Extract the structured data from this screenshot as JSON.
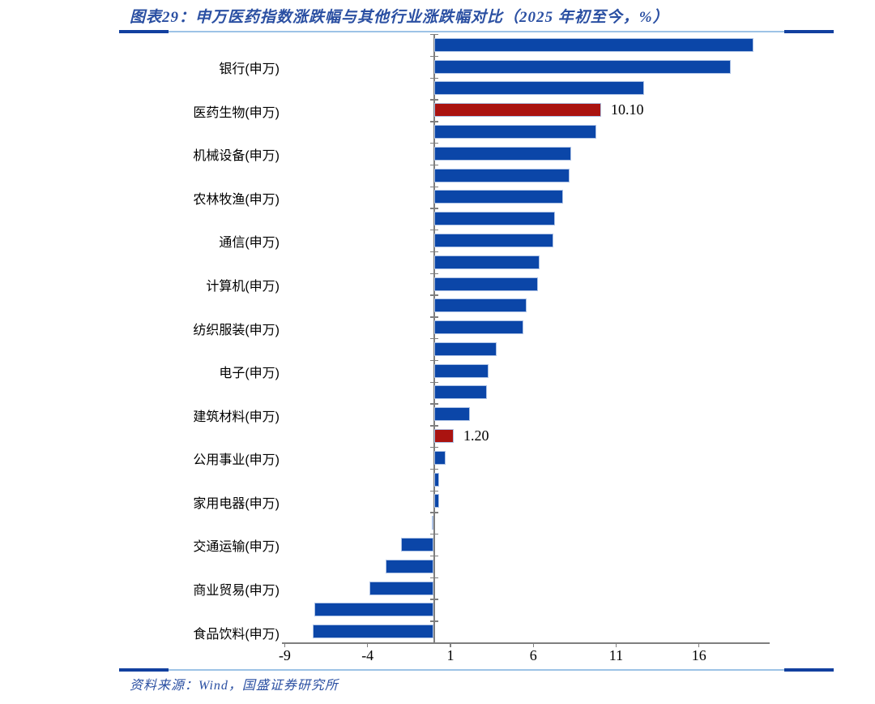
{
  "figure": {
    "title": "图表29：申万医药指数涨跌幅与其他行业涨跌幅对比（2025 年初至今，%）",
    "source": "资料来源：Wind，国盛证券研究所"
  },
  "colors": {
    "bar_blue": "#0B46A8",
    "bar_red": "#AA1310",
    "bar_border": "#AEC3E6",
    "rule_navy": "#12409F",
    "rule_light": "#9DC3E6",
    "text_blue": "#2A4FA2",
    "axis_gray": "#7F7F7F"
  },
  "chart_data": {
    "type": "bar",
    "orientation": "horizontal",
    "title": "申万医药指数涨跌幅与其他行业涨跌幅对比（2025年初至今，%）",
    "xlabel": "",
    "ylabel": "",
    "x_ticks": [
      -9,
      -4,
      1,
      6,
      11,
      16
    ],
    "xlim": [
      -9.4,
      20.6
    ],
    "grid": false,
    "legend": "none",
    "note": "only alternate bars carry visible category labels; highlighted red bars carry data labels",
    "bars": [
      {
        "label": "",
        "value": 19.3,
        "color": "blue",
        "data_label": ""
      },
      {
        "label": "银行(申万)",
        "value": 17.9,
        "color": "blue",
        "data_label": ""
      },
      {
        "label": "",
        "value": 12.7,
        "color": "blue",
        "data_label": ""
      },
      {
        "label": "医药生物(申万)",
        "value": 10.1,
        "color": "red",
        "data_label": "10.10"
      },
      {
        "label": "",
        "value": 9.8,
        "color": "blue",
        "data_label": ""
      },
      {
        "label": "机械设备(申万)",
        "value": 8.3,
        "color": "blue",
        "data_label": ""
      },
      {
        "label": "",
        "value": 8.2,
        "color": "blue",
        "data_label": ""
      },
      {
        "label": "农林牧渔(申万)",
        "value": 7.8,
        "color": "blue",
        "data_label": ""
      },
      {
        "label": "",
        "value": 7.3,
        "color": "blue",
        "data_label": ""
      },
      {
        "label": "通信(申万)",
        "value": 7.2,
        "color": "blue",
        "data_label": ""
      },
      {
        "label": "",
        "value": 6.4,
        "color": "blue",
        "data_label": ""
      },
      {
        "label": "计算机(申万)",
        "value": 6.3,
        "color": "blue",
        "data_label": ""
      },
      {
        "label": "",
        "value": 5.6,
        "color": "blue",
        "data_label": ""
      },
      {
        "label": "纺织服装(申万)",
        "value": 5.4,
        "color": "blue",
        "data_label": ""
      },
      {
        "label": "",
        "value": 3.8,
        "color": "blue",
        "data_label": ""
      },
      {
        "label": "电子(申万)",
        "value": 3.3,
        "color": "blue",
        "data_label": ""
      },
      {
        "label": "",
        "value": 3.2,
        "color": "blue",
        "data_label": ""
      },
      {
        "label": "建筑材料(申万)",
        "value": 2.2,
        "color": "blue",
        "data_label": ""
      },
      {
        "label": "",
        "value": 1.2,
        "color": "red",
        "data_label": "1.20"
      },
      {
        "label": "公用事业(申万)",
        "value": 0.7,
        "color": "blue",
        "data_label": ""
      },
      {
        "label": "",
        "value": 0.3,
        "color": "blue",
        "data_label": ""
      },
      {
        "label": "家用电器(申万)",
        "value": 0.3,
        "color": "blue",
        "data_label": ""
      },
      {
        "label": "",
        "value": -0.1,
        "color": "blue",
        "data_label": ""
      },
      {
        "label": "交通运输(申万)",
        "value": -2.0,
        "color": "blue",
        "data_label": ""
      },
      {
        "label": "",
        "value": -2.9,
        "color": "blue",
        "data_label": ""
      },
      {
        "label": "商业贸易(申万)",
        "value": -3.9,
        "color": "blue",
        "data_label": ""
      },
      {
        "label": "",
        "value": -7.2,
        "color": "blue",
        "data_label": ""
      },
      {
        "label": "食品饮料(申万)",
        "value": -7.3,
        "color": "blue",
        "data_label": ""
      }
    ]
  }
}
